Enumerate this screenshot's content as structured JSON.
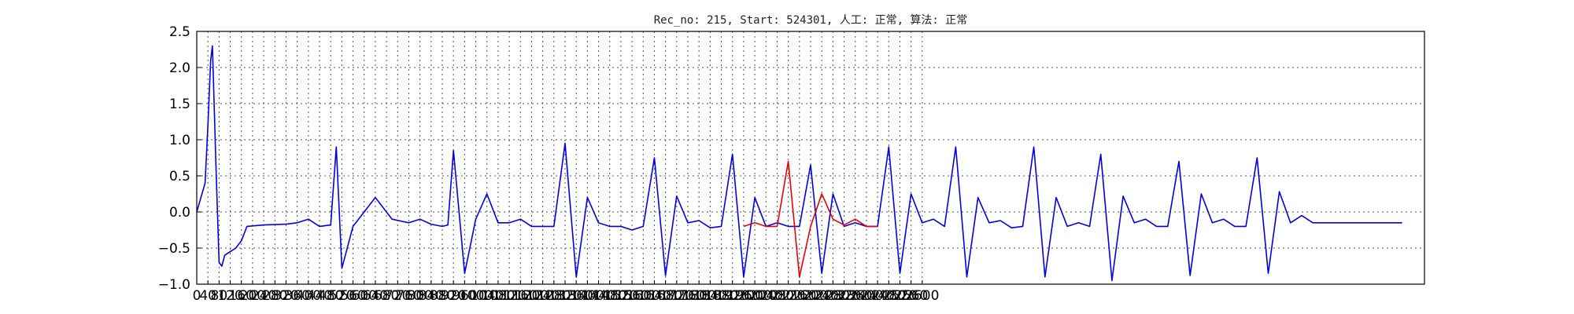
{
  "chart_data": {
    "type": "line",
    "title": "Rec_no: 215, Start: 524301, 人工: 正常, 算法: 正常",
    "xlabel": "",
    "ylabel": "",
    "xlim": [
      0,
      4400
    ],
    "ylim": [
      -1.0,
      2.5
    ],
    "yticks": [
      -1.0,
      -0.5,
      0.0,
      0.5,
      1.0,
      1.5,
      2.0,
      2.5
    ],
    "ytick_labels": [
      "−1.0",
      "−0.5",
      "0.0",
      "0.5",
      "1.0",
      "1.5",
      "2.0",
      "2.5"
    ],
    "xtick_step": 40,
    "xtick_max": 2600,
    "grid": true,
    "series": [
      {
        "color": "#0000ee",
        "x": [
          0,
          30,
          40,
          50,
          56,
          70,
          80,
          90,
          100,
          120,
          140,
          160,
          180,
          240,
          320,
          360,
          400,
          440,
          480,
          500,
          520,
          560,
          580,
          640,
          700,
          760,
          800,
          840,
          880,
          900,
          920,
          960,
          1000,
          1040,
          1080,
          1120,
          1160,
          1200,
          1240,
          1280,
          1320,
          1360,
          1400,
          1440,
          1480,
          1520,
          1560,
          1600,
          1640,
          1680,
          1720,
          1760,
          1800,
          1840,
          1880,
          1920,
          1960,
          2000,
          2040,
          2080,
          2120,
          2160,
          2200,
          2240,
          2280,
          2320,
          2360,
          2400,
          2440,
          2480,
          2520,
          2560,
          2600,
          2640,
          2680,
          2720,
          2760,
          2800,
          2840,
          2880,
          2920,
          2960,
          3000,
          3040,
          3080,
          3120,
          3160,
          3200,
          3240,
          3280,
          3320,
          3360,
          3400,
          3440,
          3480,
          3520,
          3560,
          3600,
          3640,
          3680,
          3720,
          3760,
          3800,
          3840,
          3880,
          3920,
          3960,
          4000,
          4040,
          4080,
          4120,
          4160,
          4200,
          4240,
          4280,
          4320
        ],
        "y": [
          0.0,
          0.4,
          1.2,
          2.1,
          2.3,
          0.5,
          -0.7,
          -0.75,
          -0.6,
          -0.55,
          -0.5,
          -0.4,
          -0.2,
          -0.18,
          -0.17,
          -0.15,
          -0.1,
          -0.2,
          -0.18,
          0.9,
          -0.78,
          -0.2,
          -0.1,
          0.2,
          -0.1,
          -0.15,
          -0.1,
          -0.17,
          -0.2,
          -0.18,
          0.85,
          -0.85,
          -0.1,
          0.25,
          -0.15,
          -0.15,
          -0.1,
          -0.2,
          -0.2,
          -0.2,
          0.95,
          -0.9,
          0.2,
          -0.15,
          -0.2,
          -0.2,
          -0.25,
          -0.2,
          0.75,
          -0.88,
          0.22,
          -0.15,
          -0.12,
          -0.22,
          -0.2,
          0.8,
          -0.9,
          0.2,
          -0.2,
          -0.15,
          -0.2,
          -0.2,
          0.65,
          -0.85,
          0.25,
          -0.2,
          -0.15,
          -0.2,
          -0.2,
          0.9,
          -0.85,
          0.25,
          -0.15,
          -0.1,
          -0.2,
          0.9,
          -0.9,
          0.2,
          -0.15,
          -0.12,
          -0.22,
          -0.2,
          0.9,
          -0.9,
          0.2,
          -0.2,
          -0.15,
          -0.2,
          0.8,
          -0.95,
          0.22,
          -0.15,
          -0.1,
          -0.2,
          -0.2,
          0.7,
          -0.88,
          0.25,
          -0.15,
          -0.1,
          -0.2,
          -0.2,
          0.75,
          -0.85,
          0.28,
          -0.15,
          -0.05,
          -0.15,
          -0.15,
          -0.15,
          -0.15,
          -0.15,
          -0.15,
          -0.15,
          -0.15,
          -0.15
        ]
      },
      {
        "color": "#ee0000",
        "x": [
          1960,
          2000,
          2040,
          2080,
          2120,
          2160,
          2200,
          2240,
          2280,
          2320,
          2360,
          2400,
          2440
        ],
        "y": [
          -0.2,
          -0.15,
          -0.2,
          -0.2,
          0.7,
          -0.9,
          -0.2,
          0.25,
          -0.1,
          -0.18,
          -0.1,
          -0.2,
          -0.2
        ]
      }
    ]
  }
}
